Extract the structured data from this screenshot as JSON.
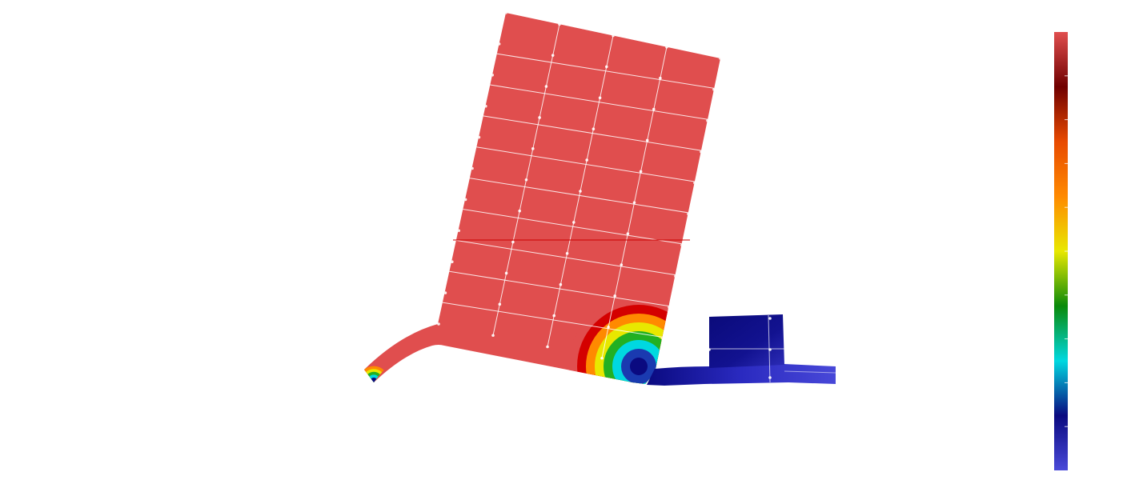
{
  "scene": {
    "background": "#ffffff",
    "mesh_color": "#e04e4e",
    "grid_line_color": "#ffffff",
    "cut_line_color": "#cc0000"
  },
  "colormap": {
    "name": "rainbow-banded",
    "stops": [
      "#4a4ad9",
      "#0a0a80",
      "#00d8e0",
      "#0a8a0a",
      "#e8e800",
      "#ff8a00",
      "#e84a00",
      "#700000",
      "#e04e4e"
    ],
    "tick_count": 10,
    "labels_visible": false
  },
  "contour_rings": {
    "main": [
      "#e04e4e",
      "#d40000",
      "#ff8a00",
      "#e8e800",
      "#22b022",
      "#00d8e0",
      "#1a3ab0",
      "#0a0a80"
    ],
    "small": [
      "#e04e4e",
      "#ff8a00",
      "#e8e800",
      "#22b022",
      "#00d8e0",
      "#0a0a80"
    ]
  }
}
